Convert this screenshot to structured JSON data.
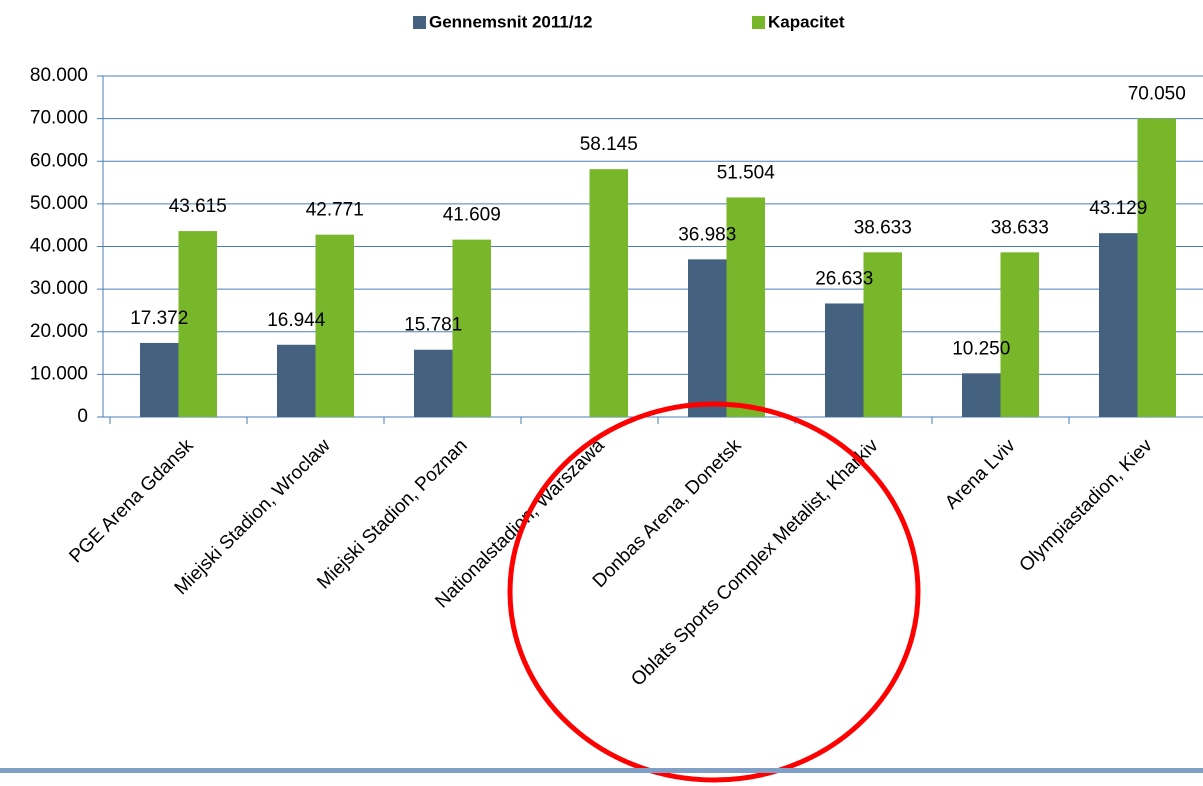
{
  "chart_data": {
    "type": "bar",
    "categories": [
      "PGE Arena Gdansk",
      "Miejski Stadion, Wroclaw",
      "Miejski Stadion, Poznan",
      "Nationalstadion, Warszawa",
      "Donbas Arena, Donetsk",
      "Oblats Sports Complex Metalist, Kharkiv",
      "Arena Lviv",
      "Olympiastadion, Kiev"
    ],
    "series": [
      {
        "name": "Gennemsnit 2011/12",
        "color": "#44627f",
        "values": [
          17372,
          16944,
          15781,
          null,
          36983,
          26633,
          10250,
          43129
        ],
        "value_labels": [
          "17.372",
          "16.944",
          "15.781",
          null,
          "36.983",
          "26.633",
          "10.250",
          "43.129"
        ]
      },
      {
        "name": "Kapacitet",
        "color": "#78b62a",
        "values": [
          43615,
          42771,
          41609,
          58145,
          51504,
          38633,
          38633,
          70050
        ],
        "value_labels": [
          "43.615",
          "42.771",
          "41.609",
          "58.145",
          "51.504",
          "38.633",
          "38.633",
          "70.050"
        ]
      }
    ],
    "ylim": [
      0,
      80000
    ],
    "yticks": [
      0,
      {
        "value": 10000,
        "label": "10.000"
      },
      {
        "value": 20000,
        "label": "20.000"
      },
      {
        "value": 30000,
        "label": "30.000"
      },
      {
        "value": 40000,
        "label": "40.000"
      },
      {
        "value": 50000,
        "label": "50.000"
      },
      {
        "value": 60000,
        "label": "60.000"
      },
      {
        "value": 70000,
        "label": "70.000"
      },
      {
        "value": 80000,
        "label": "80.000"
      }
    ],
    "grid": true,
    "legend": "top"
  }
}
